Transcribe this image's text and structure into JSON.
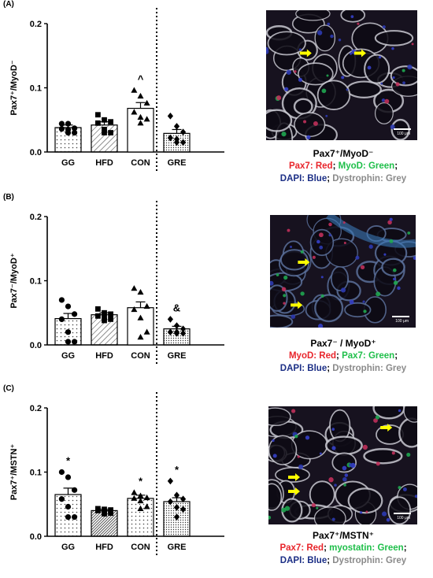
{
  "panels": [
    {
      "label": "(A)",
      "ylabel": "Pax7⁺/MyoD⁻",
      "image_scale": "100 μm",
      "caption": {
        "title": "Pax7⁺/MyoD⁻",
        "line1": [
          {
            "text": "Pax7: Red",
            "color": "red"
          },
          {
            "text": "; ",
            "color": "black"
          },
          {
            "text": "MyoD: Green",
            "color": "green"
          },
          {
            "text": ";",
            "color": "black"
          }
        ],
        "line2": [
          {
            "text": "DAPI: Blue",
            "color": "blue"
          },
          {
            "text": "; ",
            "color": "black"
          },
          {
            "text": "Dystrophin: Grey",
            "color": "grey"
          }
        ]
      }
    },
    {
      "label": "(B)",
      "ylabel": "Pax7⁻/MyoD⁺",
      "image_scale": "100 μm",
      "caption": {
        "title": "Pax7⁻ / MyoD⁺",
        "line1": [
          {
            "text": "MyoD: Red",
            "color": "red"
          },
          {
            "text": "; ",
            "color": "black"
          },
          {
            "text": "Pax7: Green",
            "color": "green"
          },
          {
            "text": ";",
            "color": "black"
          }
        ],
        "line2": [
          {
            "text": "DAPI: Blue",
            "color": "blue"
          },
          {
            "text": "; ",
            "color": "black"
          },
          {
            "text": "Dystrophin: Grey",
            "color": "grey"
          }
        ]
      }
    },
    {
      "label": "(C)",
      "ylabel": "Pax7⁺/MSTN⁺",
      "image_scale": "100 μm",
      "caption": {
        "title": "Pax7⁺/MSTN⁺",
        "line1": [
          {
            "text": "Pax7: Red",
            "color": "red"
          },
          {
            "text": "; ",
            "color": "black"
          },
          {
            "text": "myostatin: Green",
            "color": "green"
          },
          {
            "text": ";",
            "color": "black"
          }
        ],
        "line2": [
          {
            "text": "DAPI: Blue",
            "color": "blue"
          },
          {
            "text": "; ",
            "color": "black"
          },
          {
            "text": "Dystrophin: Grey",
            "color": "grey"
          }
        ]
      }
    }
  ],
  "colors": {
    "red": "#e8252b",
    "green": "#1fbf4a",
    "blue": "#1c2f86",
    "grey": "#8a8a8a",
    "black": "#000000",
    "arrow": "#ffff00"
  },
  "chart_data": [
    {
      "type": "bar",
      "categories": [
        "GG",
        "HFD",
        "CON",
        "GRE"
      ],
      "ylim": [
        0,
        0.2
      ],
      "yticks": [
        "0.0",
        "0.1",
        "0.2"
      ],
      "values": [
        0.038,
        0.042,
        0.068,
        0.029
      ],
      "sem": [
        0.004,
        0.005,
        0.009,
        0.006
      ],
      "patterns": [
        "dots",
        "diag",
        "none",
        "dots-dense"
      ],
      "markers": [
        "circle",
        "square",
        "triangle",
        "diamond"
      ],
      "points": [
        [
          0.044,
          0.044,
          0.037,
          0.036,
          0.035,
          0.03,
          0.03
        ],
        [
          0.058,
          0.05,
          0.047,
          0.045,
          0.035,
          0.03,
          0.03
        ],
        [
          0.096,
          0.087,
          0.076,
          0.062,
          0.054,
          0.051,
          0.045
        ],
        [
          0.056,
          0.04,
          0.031,
          0.022,
          0.02,
          0.015,
          0.015
        ]
      ],
      "annotations": [
        "",
        "",
        "^",
        ""
      ],
      "separator_after": 3
    },
    {
      "type": "bar",
      "categories": [
        "GG",
        "HFD",
        "CON",
        "GRE"
      ],
      "ylim": [
        0,
        0.2
      ],
      "yticks": [
        "0.0",
        "0.1",
        "0.2"
      ],
      "values": [
        0.041,
        0.047,
        0.058,
        0.025
      ],
      "sem": [
        0.008,
        0.003,
        0.009,
        0.004
      ],
      "patterns": [
        "dots",
        "diag",
        "none",
        "dots-dense"
      ],
      "markers": [
        "circle",
        "square",
        "triangle",
        "diamond"
      ],
      "points": [
        [
          0.07,
          0.06,
          0.048,
          0.04,
          0.02,
          0.005,
          0.005
        ],
        [
          0.056,
          0.05,
          0.048,
          0.045,
          0.043,
          0.04,
          0.038
        ],
        [
          0.088,
          0.082,
          0.06,
          0.055,
          0.042,
          0.02,
          0.012
        ],
        [
          0.04,
          0.03,
          0.025,
          0.02,
          0.02,
          0.018,
          0.018
        ]
      ],
      "annotations": [
        "",
        "",
        "",
        "&"
      ],
      "separator_after": 3
    },
    {
      "type": "bar",
      "categories": [
        "GG",
        "HFD",
        "CON",
        "GRE"
      ],
      "ylim": [
        0,
        0.2
      ],
      "yticks": [
        "0.0",
        "0.1",
        "0.2"
      ],
      "values": [
        0.065,
        0.04,
        0.059,
        0.054
      ],
      "sem": [
        0.01,
        0.002,
        0.005,
        0.006
      ],
      "patterns": [
        "dots",
        "diag-dense",
        "dots",
        "dots-dense"
      ],
      "markers": [
        "circle",
        "square",
        "triangle",
        "diamond"
      ],
      "points": [
        [
          0.1,
          0.092,
          0.072,
          0.058,
          0.046,
          0.03,
          0.03
        ],
        [
          0.043,
          0.042,
          0.041,
          0.04,
          0.038,
          0.036,
          0.035
        ],
        [
          0.068,
          0.063,
          0.06,
          0.059,
          0.055,
          0.046,
          0.043
        ],
        [
          0.086,
          0.064,
          0.058,
          0.054,
          0.045,
          0.042,
          0.03
        ]
      ],
      "annotations": [
        "*",
        "",
        "*",
        "*"
      ],
      "separator_after": 3
    }
  ]
}
